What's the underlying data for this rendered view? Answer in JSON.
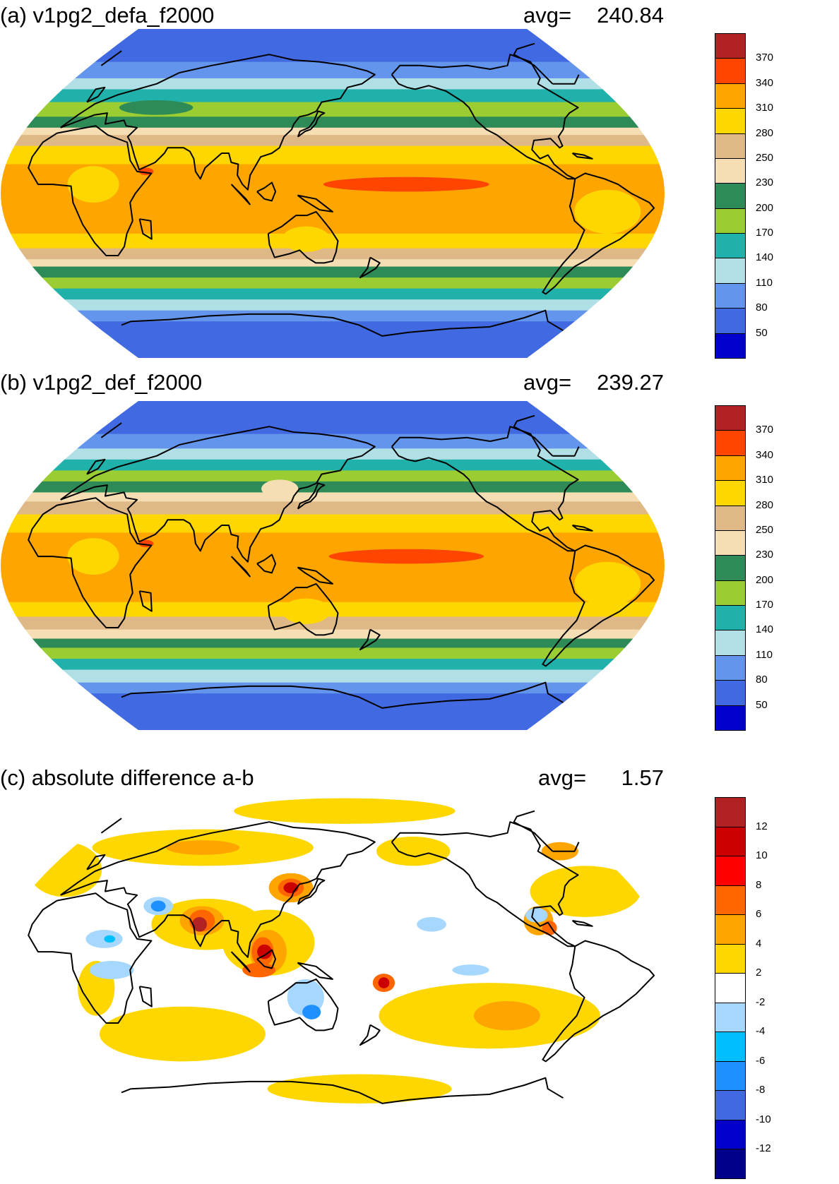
{
  "panels": [
    {
      "id": "a",
      "title": "(a) v1pg2_defa_f2000",
      "avg_label": "avg=",
      "avg_value": "240.84",
      "colorbar": {
        "labels": [
          "370",
          "340",
          "310",
          "280",
          "250",
          "230",
          "200",
          "170",
          "140",
          "110",
          "80",
          "50"
        ],
        "colors": [
          "#b22222",
          "#ff4500",
          "#ffa500",
          "#ffd700",
          "#deb887",
          "#f5deb3",
          "#2e8b57",
          "#9acd32",
          "#20b2aa",
          "#b0e0e6",
          "#6495ed",
          "#4169e1",
          "#0000cd"
        ]
      },
      "bands": [
        {
          "lat_from": 90,
          "lat_to": 72,
          "color": "#4169e1"
        },
        {
          "lat_from": 72,
          "lat_to": 63,
          "color": "#6495ed"
        },
        {
          "lat_from": 63,
          "lat_to": 57,
          "color": "#b0e0e6"
        },
        {
          "lat_from": 57,
          "lat_to": 50,
          "color": "#20b2aa"
        },
        {
          "lat_from": 50,
          "lat_to": 42,
          "color": "#9acd32"
        },
        {
          "lat_from": 42,
          "lat_to": 36,
          "color": "#2e8b57"
        },
        {
          "lat_from": 36,
          "lat_to": 32,
          "color": "#f5deb3"
        },
        {
          "lat_from": 32,
          "lat_to": 26,
          "color": "#deb887"
        },
        {
          "lat_from": 26,
          "lat_to": 16,
          "color": "#ffd700"
        },
        {
          "lat_from": 16,
          "lat_to": -22,
          "color": "#ffa500"
        },
        {
          "lat_from": -22,
          "lat_to": -30,
          "color": "#ffd700"
        },
        {
          "lat_from": -30,
          "lat_to": -36,
          "color": "#deb887"
        },
        {
          "lat_from": -36,
          "lat_to": -40,
          "color": "#f5deb3"
        },
        {
          "lat_from": -40,
          "lat_to": -46,
          "color": "#2e8b57"
        },
        {
          "lat_from": -46,
          "lat_to": -52,
          "color": "#9acd32"
        },
        {
          "lat_from": -52,
          "lat_to": -58,
          "color": "#20b2aa"
        },
        {
          "lat_from": -58,
          "lat_to": -64,
          "color": "#b0e0e6"
        },
        {
          "lat_from": -64,
          "lat_to": -70,
          "color": "#6495ed"
        },
        {
          "lat_from": -70,
          "lat_to": -90,
          "color": "#4169e1"
        }
      ],
      "blobs": [
        {
          "lon": 190,
          "lat": 5,
          "dlon": 45,
          "dlat": 4,
          "color": "#ff4500"
        },
        {
          "lon": 48,
          "lat": 12,
          "dlon": 4,
          "dlat": 2,
          "color": "#ff4500"
        },
        {
          "lon": 300,
          "lat": -10,
          "dlon": 18,
          "dlat": 12,
          "color": "#ffd700"
        },
        {
          "lon": 20,
          "lat": 5,
          "dlon": 14,
          "dlat": 10,
          "color": "#ffd700"
        },
        {
          "lon": 135,
          "lat": -25,
          "dlon": 13,
          "dlat": 7,
          "color": "#ffd700"
        },
        {
          "lon": 40,
          "lat": 47,
          "dlon": 20,
          "dlat": 4,
          "color": "#2e8b57"
        }
      ]
    },
    {
      "id": "b",
      "title": "(b) v1pg2_def_f2000",
      "avg_label": "avg=",
      "avg_value": "239.27",
      "colorbar": {
        "labels": [
          "370",
          "340",
          "310",
          "280",
          "250",
          "230",
          "200",
          "170",
          "140",
          "110",
          "80",
          "50"
        ],
        "colors": [
          "#b22222",
          "#ff4500",
          "#ffa500",
          "#ffd700",
          "#deb887",
          "#f5deb3",
          "#2e8b57",
          "#9acd32",
          "#20b2aa",
          "#b0e0e6",
          "#6495ed",
          "#4169e1",
          "#0000cd"
        ]
      },
      "bands": [
        {
          "lat_from": 90,
          "lat_to": 72,
          "color": "#4169e1"
        },
        {
          "lat_from": 72,
          "lat_to": 64,
          "color": "#6495ed"
        },
        {
          "lat_from": 64,
          "lat_to": 58,
          "color": "#b0e0e6"
        },
        {
          "lat_from": 58,
          "lat_to": 52,
          "color": "#20b2aa"
        },
        {
          "lat_from": 52,
          "lat_to": 46,
          "color": "#9acd32"
        },
        {
          "lat_from": 46,
          "lat_to": 40,
          "color": "#2e8b57"
        },
        {
          "lat_from": 40,
          "lat_to": 35,
          "color": "#f5deb3"
        },
        {
          "lat_from": 35,
          "lat_to": 28,
          "color": "#deb887"
        },
        {
          "lat_from": 28,
          "lat_to": 18,
          "color": "#ffd700"
        },
        {
          "lat_from": 18,
          "lat_to": -20,
          "color": "#ffa500"
        },
        {
          "lat_from": -20,
          "lat_to": -28,
          "color": "#ffd700"
        },
        {
          "lat_from": -28,
          "lat_to": -35,
          "color": "#deb887"
        },
        {
          "lat_from": -35,
          "lat_to": -40,
          "color": "#f5deb3"
        },
        {
          "lat_from": -40,
          "lat_to": -45,
          "color": "#2e8b57"
        },
        {
          "lat_from": -45,
          "lat_to": -51,
          "color": "#9acd32"
        },
        {
          "lat_from": -51,
          "lat_to": -57,
          "color": "#20b2aa"
        },
        {
          "lat_from": -57,
          "lat_to": -64,
          "color": "#b0e0e6"
        },
        {
          "lat_from": -64,
          "lat_to": -70,
          "color": "#6495ed"
        },
        {
          "lat_from": -70,
          "lat_to": -90,
          "color": "#4169e1"
        }
      ],
      "blobs": [
        {
          "lon": 190,
          "lat": 5,
          "dlon": 42,
          "dlat": 4,
          "color": "#ff4500"
        },
        {
          "lon": 48,
          "lat": 12,
          "dlon": 4,
          "dlat": 2,
          "color": "#ff4500"
        },
        {
          "lon": 300,
          "lat": -10,
          "dlon": 18,
          "dlat": 12,
          "color": "#ffd700"
        },
        {
          "lon": 20,
          "lat": 5,
          "dlon": 14,
          "dlat": 10,
          "color": "#ffd700"
        },
        {
          "lon": 135,
          "lat": -25,
          "dlon": 13,
          "dlat": 7,
          "color": "#ffd700"
        },
        {
          "lon": 118,
          "lat": 42,
          "dlon": 10,
          "dlat": 5,
          "color": "#f5deb3"
        }
      ]
    },
    {
      "id": "c",
      "title": "(c) absolute difference a-b",
      "avg_label": "avg=",
      "avg_value": "1.57",
      "colorbar": {
        "labels": [
          "12",
          "10",
          "8",
          "6",
          "4",
          "2",
          "-2",
          "-4",
          "-6",
          "-8",
          "-10",
          "-12"
        ],
        "colors": [
          "#b22222",
          "#cd0000",
          "#ff0000",
          "#ff6600",
          "#ffa500",
          "#ffd700",
          "#ffffff",
          "#a6d8ff",
          "#00bfff",
          "#1e90ff",
          "#4169e1",
          "#0000cd",
          "#00008b"
        ]
      },
      "bands": [
        {
          "lat_from": 90,
          "lat_to": -90,
          "color": "#ffffff"
        }
      ],
      "blobs": [
        {
          "lon": 160,
          "lat": 82,
          "dlon": 60,
          "dlat": 7,
          "color": "#ffd700"
        },
        {
          "lon": 60,
          "lat": 62,
          "dlon": 60,
          "dlat": 10,
          "color": "#ffd700"
        },
        {
          "lon": 80,
          "lat": 20,
          "dlon": 30,
          "dlat": 14,
          "color": "#ffd700"
        },
        {
          "lon": 115,
          "lat": 10,
          "dlon": 25,
          "dlat": 18,
          "color": "#ffd700"
        },
        {
          "lon": 240,
          "lat": -30,
          "dlon": 60,
          "dlat": 18,
          "color": "#ffd700"
        },
        {
          "lon": 60,
          "lat": -40,
          "dlon": 45,
          "dlat": 15,
          "color": "#ffd700"
        },
        {
          "lon": 300,
          "lat": 38,
          "dlon": 30,
          "dlat": 14,
          "color": "#ffd700"
        },
        {
          "lon": 20,
          "lat": -15,
          "dlon": 10,
          "dlat": 15,
          "color": "#ffd700"
        },
        {
          "lon": 340,
          "lat": 50,
          "dlon": 20,
          "dlat": 15,
          "color": "#ffd700"
        },
        {
          "lon": 170,
          "lat": -70,
          "dlon": 50,
          "dlat": 8,
          "color": "#ffd700"
        },
        {
          "lon": 205,
          "lat": 60,
          "dlon": 20,
          "dlat": 8,
          "color": "#ffd700"
        },
        {
          "lon": 77,
          "lat": 22,
          "dlon": 12,
          "dlat": 8,
          "color": "#ffa500"
        },
        {
          "lon": 125,
          "lat": 40,
          "dlon": 12,
          "dlat": 8,
          "color": "#ffa500"
        },
        {
          "lon": 115,
          "lat": 5,
          "dlon": 10,
          "dlat": 12,
          "color": "#ffa500"
        },
        {
          "lon": 265,
          "lat": 22,
          "dlon": 8,
          "dlat": 8,
          "color": "#ffa500"
        },
        {
          "lon": 250,
          "lat": -30,
          "dlon": 18,
          "dlat": 8,
          "color": "#ffa500"
        },
        {
          "lon": 60,
          "lat": 62,
          "dlon": 20,
          "dlat": 4,
          "color": "#ffa500"
        },
        {
          "lon": 305,
          "lat": 60,
          "dlon": 10,
          "dlat": 5,
          "color": "#ffa500"
        },
        {
          "lon": 77,
          "lat": 22,
          "dlon": 7,
          "dlat": 6,
          "color": "#ff6600"
        },
        {
          "lon": 125,
          "lat": 40,
          "dlon": 7,
          "dlat": 5,
          "color": "#ff6600"
        },
        {
          "lon": 112,
          "lat": 5,
          "dlon": 6,
          "dlat": 8,
          "color": "#ff6600"
        },
        {
          "lon": 178,
          "lat": -12,
          "dlon": 6,
          "dlat": 5,
          "color": "#ff6600"
        },
        {
          "lon": 110,
          "lat": -5,
          "dlon": 9,
          "dlat": 4,
          "color": "#ff6600"
        },
        {
          "lon": 76,
          "lat": 20,
          "dlon": 4,
          "dlat": 4,
          "color": "#b22222"
        },
        {
          "lon": 125,
          "lat": 40,
          "dlon": 4,
          "dlat": 3,
          "color": "#cd0000"
        },
        {
          "lon": 113,
          "lat": 5,
          "dlon": 4,
          "dlat": 4,
          "color": "#cd0000"
        },
        {
          "lon": 178,
          "lat": -12,
          "dlon": 3,
          "dlat": 3,
          "color": "#cd0000"
        },
        {
          "lon": 270,
          "lat": 18,
          "dlon": 4,
          "dlat": 4,
          "color": "#ff6600"
        },
        {
          "lon": 50,
          "lat": 30,
          "dlon": 8,
          "dlat": 5,
          "color": "#a6d8ff"
        },
        {
          "lon": 25,
          "lat": 12,
          "dlon": 10,
          "dlat": 5,
          "color": "#a6d8ff"
        },
        {
          "lon": 30,
          "lat": -5,
          "dlon": 12,
          "dlat": 5,
          "color": "#a6d8ff"
        },
        {
          "lon": 135,
          "lat": -20,
          "dlon": 10,
          "dlat": 10,
          "color": "#a6d8ff"
        },
        {
          "lon": 205,
          "lat": 20,
          "dlon": 8,
          "dlat": 4,
          "color": "#a6d8ff"
        },
        {
          "lon": 225,
          "lat": -5,
          "dlon": 10,
          "dlat": 3,
          "color": "#a6d8ff"
        },
        {
          "lon": 265,
          "lat": 25,
          "dlon": 6,
          "dlat": 4,
          "color": "#a6d8ff"
        },
        {
          "lon": 50,
          "lat": 30,
          "dlon": 4,
          "dlat": 3,
          "color": "#1e90ff"
        },
        {
          "lon": 138,
          "lat": -28,
          "dlon": 5,
          "dlat": 4,
          "color": "#1e90ff"
        },
        {
          "lon": 28,
          "lat": 12,
          "dlon": 3,
          "dlat": 2,
          "color": "#00bfff"
        }
      ]
    }
  ],
  "layers": {
    "coastlines": "coastline-outlines"
  }
}
